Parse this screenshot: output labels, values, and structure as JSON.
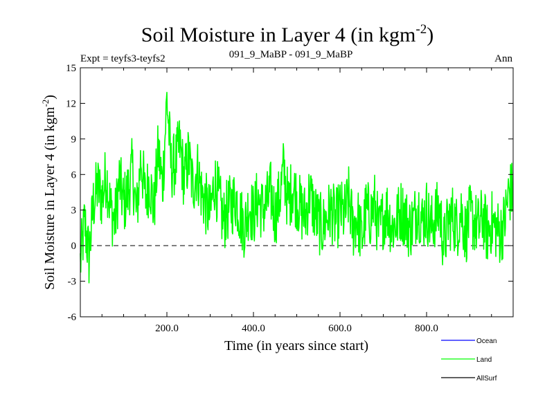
{
  "chart_data": {
    "type": "line",
    "title_main": "Soil Moisture in Layer 4 (in kgm",
    "title_sup": "-2",
    "title_close": ")",
    "subtitle_left": "Expt = teyfs3-teyfs2",
    "subtitle_center": "091_9_MaBP - 091_9_MaBP",
    "subtitle_right": "Ann",
    "xlabel": "Time (in years since start)",
    "ylabel_main": "Soil Moisture in Layer 4 (in kgm",
    "ylabel_sup": "-2",
    "ylabel_close": ")",
    "xlim": [
      0,
      1000
    ],
    "ylim": [
      -6,
      15
    ],
    "xticks": [
      200,
      400,
      600,
      800
    ],
    "xtick_labels": [
      "200.0",
      "400.0",
      "600.0",
      "800.0"
    ],
    "yticks": [
      -6,
      -3,
      0,
      3,
      6,
      9,
      12,
      15
    ],
    "ytick_labels": [
      "-6",
      "-3",
      "0",
      "3",
      "6",
      "9",
      "12",
      "15"
    ],
    "zero_line": 0,
    "legend": [
      {
        "name": "Ocean",
        "color": "#0000ff"
      },
      {
        "name": "Land",
        "color": "#00ff00"
      },
      {
        "name": "AllSurf",
        "color": "#000000"
      }
    ],
    "series": [
      {
        "name": "Land",
        "color": "#00ff00",
        "x_start": 0,
        "x_step": 10,
        "values": [
          -1.5,
          2.0,
          -1.0,
          3.5,
          5.0,
          4.0,
          6.0,
          3.0,
          2.0,
          5.5,
          3.5,
          4.5,
          6.5,
          2.5,
          7.5,
          4.0,
          5.5,
          3.0,
          8.0,
          5.0,
          12.5,
          6.5,
          7.0,
          8.5,
          5.5,
          7.5,
          5.0,
          6.5,
          4.5,
          3.5,
          2.5,
          5.5,
          4.0,
          2.0,
          3.0,
          3.5,
          4.0,
          2.5,
          1.5,
          3.5,
          2.5,
          4.0,
          3.0,
          3.5,
          4.5,
          2.5,
          4.0,
          6.5,
          3.5,
          5.0,
          4.0,
          3.0,
          2.5,
          4.5,
          3.0,
          2.0,
          1.5,
          2.5,
          3.0,
          2.0,
          3.0,
          2.5,
          4.0,
          1.5,
          2.5,
          0.5,
          3.0,
          2.5,
          3.5,
          1.0,
          2.5,
          3.0,
          1.5,
          2.0,
          3.0,
          2.5,
          1.5,
          2.0,
          3.5,
          2.0,
          3.0,
          1.5,
          2.5,
          3.0,
          0.0,
          2.0,
          2.5,
          1.5,
          3.0,
          1.0,
          2.5,
          2.0,
          1.5,
          2.5,
          1.0,
          2.0,
          1.5,
          1.0,
          2.0,
          4.5
        ]
      },
      {
        "name": "Ocean",
        "color": "#0000ff",
        "values": []
      },
      {
        "name": "AllSurf",
        "color": "#000000",
        "values": []
      }
    ]
  }
}
